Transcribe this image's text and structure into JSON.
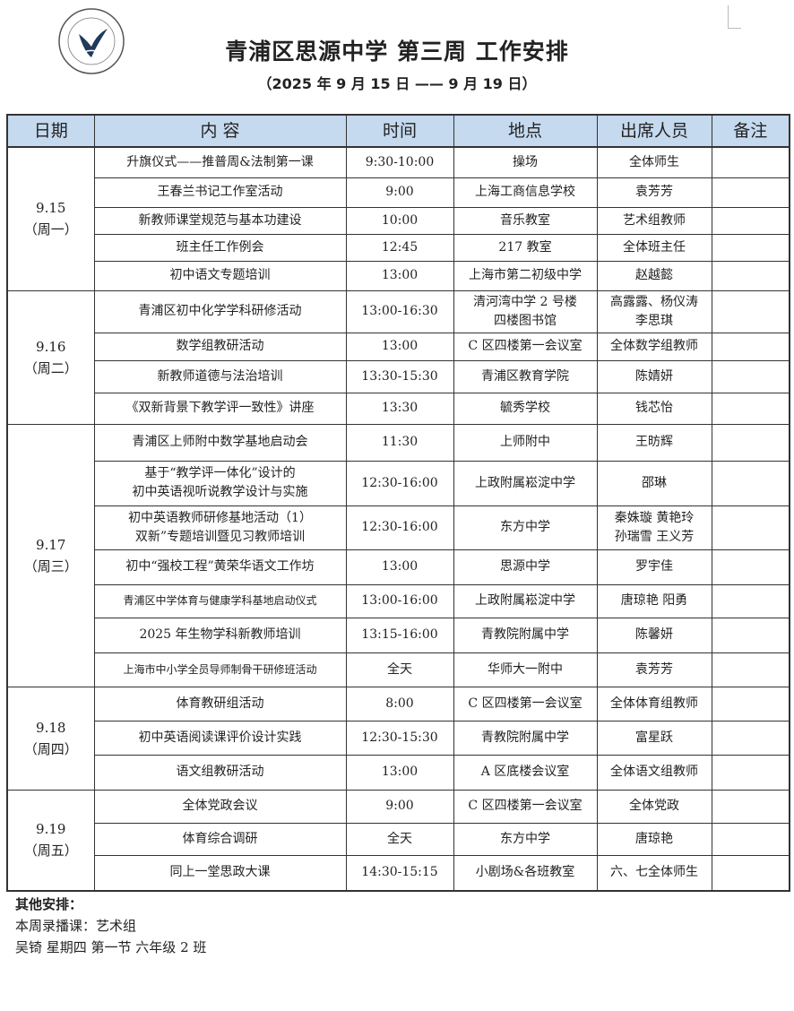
{
  "logo": {
    "text": "上海市青浦区思源中学",
    "en": "SHANGHAI QINGPU SIYUAN MIDDLE SCHOOL"
  },
  "title": "青浦区思源中学 第三周 工作安排",
  "subtitle": "（2025 年 9 月 15 日 —— 9 月 19 日）",
  "headers": [
    "日期",
    "内 容",
    "时间",
    "地点",
    "出席人员",
    "备注"
  ],
  "days": [
    {
      "date": "9.15",
      "weekday": "（周一）",
      "rows": [
        [
          "升旗仪式——推普周&法制第一课",
          "9:30-10:00",
          "操场",
          "全体师生"
        ],
        [
          "王春兰书记工作室活动",
          "9:00",
          "上海工商信息学校",
          "袁芳芳"
        ],
        [
          "新教师课堂规范与基本功建设",
          "10:00",
          "音乐教室",
          "艺术组教师"
        ],
        [
          "班主任工作例会",
          "12:45",
          "217 教室",
          "全体班主任"
        ],
        [
          "初中语文专题培训",
          "13:00",
          "上海市第二初级中学",
          "赵越懿"
        ]
      ]
    },
    {
      "date": "9.16",
      "weekday": "（周二）",
      "rows": [
        [
          "青浦区初中化学学科研修活动",
          "13:00-16:30",
          "清河湾中学 2 号楼\n四楼图书馆",
          "高露露、杨仪涛\n李思琪"
        ],
        [
          "数学组教研活动",
          "13:00",
          "C 区四楼第一会议室",
          "全体数学组教师"
        ],
        [
          "新教师道德与法治培训",
          "13:30-15:30",
          "青浦区教育学院",
          "陈婧妍"
        ],
        [
          "《双新背景下教学评一致性》讲座",
          "13:30",
          "毓秀学校",
          "钱芯怡"
        ]
      ]
    },
    {
      "date": "9.17",
      "weekday": "（周三）",
      "rows": [
        [
          "青浦区上师附中数学基地启动会",
          "11:30",
          "上师附中",
          "王昉辉"
        ],
        [
          "基于“教学评一体化”设计的\n初中英语视听说教学设计与实施",
          "12:30-16:00",
          "上政附属崧淀中学",
          "邵琳"
        ],
        [
          "初中英语教师研修基地活动（1）\n双新”专题培训暨见习教师培训",
          "12:30-16:00",
          "东方中学",
          "秦姝璇 黄艳玲\n孙瑞雪 王义芳"
        ],
        [
          "初中“强校工程”黄荣华语文工作坊",
          "13:00",
          "思源中学",
          "罗宇佳"
        ],
        [
          "青浦区中学体育与健康学科基地启动仪式",
          "13:00-16:00",
          "上政附属崧淀中学",
          "唐琼艳 阳勇"
        ],
        [
          "2025 年生物学科新教师培训",
          "13:15-16:00",
          "青教院附属中学",
          "陈馨妍"
        ],
        [
          "上海市中小学全员导师制骨干研修班活动",
          "全天",
          "华师大一附中",
          "袁芳芳"
        ]
      ]
    },
    {
      "date": "9.18",
      "weekday": "（周四）",
      "rows": [
        [
          "体育教研组活动",
          "8:00",
          "C 区四楼第一会议室",
          "全体体育组教师"
        ],
        [
          "初中英语阅读课评价设计实践",
          "12:30-15:30",
          "青教院附属中学",
          "富星跃"
        ],
        [
          "语文组教研活动",
          "13:00",
          "A 区底楼会议室",
          "全体语文组教师"
        ]
      ]
    },
    {
      "date": "9.19",
      "weekday": "（周五）",
      "rows": [
        [
          "全体党政会议",
          "9:00",
          "C 区四楼第一会议室",
          "全体党政"
        ],
        [
          "体育综合调研",
          "全天",
          "东方中学",
          "唐琼艳"
        ],
        [
          "同上一堂思政大课",
          "14:30-15:15",
          "小剧场&各班教室",
          "六、七全体师生"
        ]
      ]
    }
  ],
  "notes": {
    "heading": "其他安排：",
    "lines": [
      "本周录播课：艺术组",
      "吴锜  星期四  第一节  六年级 2 班"
    ]
  },
  "colors": {
    "header_bg": "#c5d9ef",
    "logo": "#1f3a5a"
  }
}
